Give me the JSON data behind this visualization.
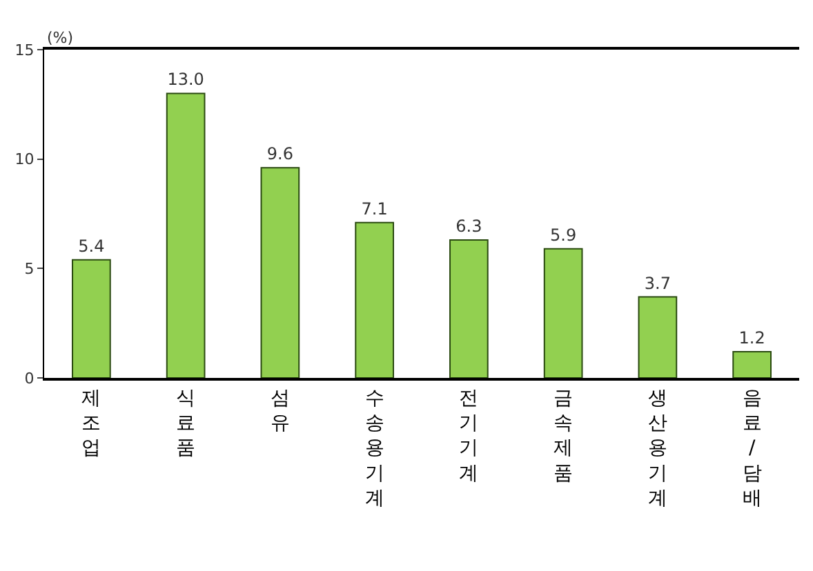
{
  "chart_data": {
    "type": "bar",
    "ylabel": "(%)",
    "categories": [
      "제조업",
      "식료품",
      "섬유",
      "수송용기계",
      "전기기계",
      "금속제품",
      "생산용기계",
      "음료/담배"
    ],
    "values": [
      5.4,
      13.0,
      9.6,
      7.1,
      6.3,
      5.9,
      3.7,
      1.2
    ],
    "value_labels": [
      "5.4",
      "13.0",
      "9.6",
      "7.1",
      "6.3",
      "5.9",
      "3.7",
      "1.2"
    ],
    "color": "#92d050",
    "ylim": [
      0,
      15
    ],
    "yticks": [
      0,
      5,
      10,
      15
    ]
  }
}
